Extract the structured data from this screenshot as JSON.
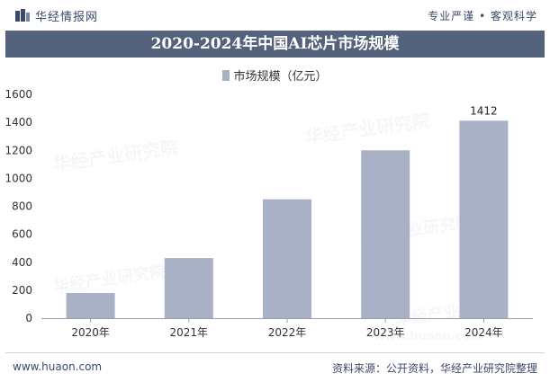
{
  "header": {
    "brand": "华经情报网",
    "slogan": "专业严谨 • 客观科学",
    "title": "2020-2024年中国AI芯片市场规模"
  },
  "footer": {
    "website": "www.huaon.com",
    "source": "资料来源：公开资料，华经产业研究院整理"
  },
  "watermarks": [
    "华经产业研究院",
    "www.huaon.com"
  ],
  "colors": {
    "bar": "#a9b1c6",
    "title_bg": "#54627c",
    "text_dark": "#3b4a6b"
  },
  "chart_data": {
    "type": "bar",
    "categories": [
      "2020年",
      "2021年",
      "2022年",
      "2023年",
      "2024年"
    ],
    "series": [
      {
        "name": "市场规模（亿元）",
        "values": [
          180,
          430,
          850,
          1200,
          1412
        ]
      }
    ],
    "data_labels": [
      null,
      null,
      null,
      null,
      "1412"
    ],
    "ylim": [
      0,
      1600
    ],
    "yticks": [
      0,
      200,
      400,
      600,
      800,
      1000,
      1200,
      1400,
      1600
    ],
    "legend_position": "top-center",
    "grid": false
  }
}
